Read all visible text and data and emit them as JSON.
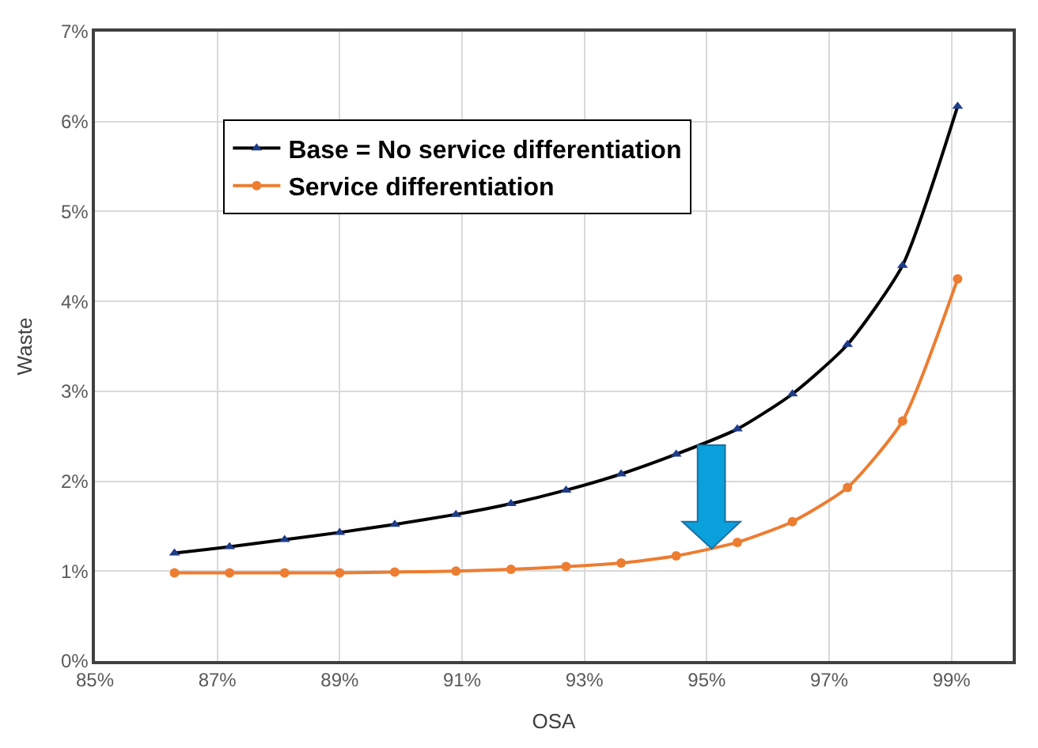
{
  "chart_data": {
    "type": "line",
    "xlabel": "OSA",
    "ylabel": "Waste",
    "x": [
      86.3,
      87.2,
      88.1,
      89.0,
      89.9,
      90.9,
      91.8,
      92.7,
      93.6,
      94.5,
      95.5,
      96.4,
      97.3,
      98.2,
      99.1
    ],
    "series": [
      {
        "name": "Base = No service differentiation",
        "color": "#000000",
        "marker": "triangle",
        "values": [
          1.2,
          1.27,
          1.35,
          1.43,
          1.52,
          1.63,
          1.75,
          1.9,
          2.08,
          2.3,
          2.58,
          2.97,
          3.52,
          4.4,
          6.17
        ]
      },
      {
        "name": "Service differentiation",
        "color": "#ed7d31",
        "marker": "circle",
        "values": [
          0.98,
          0.98,
          0.98,
          0.98,
          0.99,
          1.0,
          1.02,
          1.05,
          1.09,
          1.17,
          1.32,
          1.55,
          1.93,
          2.67,
          4.25
        ]
      }
    ],
    "xlim": [
      85,
      100
    ],
    "xticks": [
      {
        "value": 85,
        "label": "85%"
      },
      {
        "value": 87,
        "label": "87%"
      },
      {
        "value": 89,
        "label": "89%"
      },
      {
        "value": 91,
        "label": "91%"
      },
      {
        "value": 93,
        "label": "93%"
      },
      {
        "value": 95,
        "label": "95%"
      },
      {
        "value": 97,
        "label": "97%"
      },
      {
        "value": 99,
        "label": "99%"
      }
    ],
    "ylim": [
      0,
      7
    ],
    "yticks": [
      {
        "value": 0,
        "label": "0%"
      },
      {
        "value": 1,
        "label": "1%"
      },
      {
        "value": 2,
        "label": "2%"
      },
      {
        "value": 3,
        "label": "3%"
      },
      {
        "value": 4,
        "label": "4%"
      },
      {
        "value": 5,
        "label": "5%"
      },
      {
        "value": 6,
        "label": "6%"
      },
      {
        "value": 7,
        "label": "7%"
      }
    ],
    "grid": true,
    "legend": "top left",
    "line_style": "solid"
  }
}
